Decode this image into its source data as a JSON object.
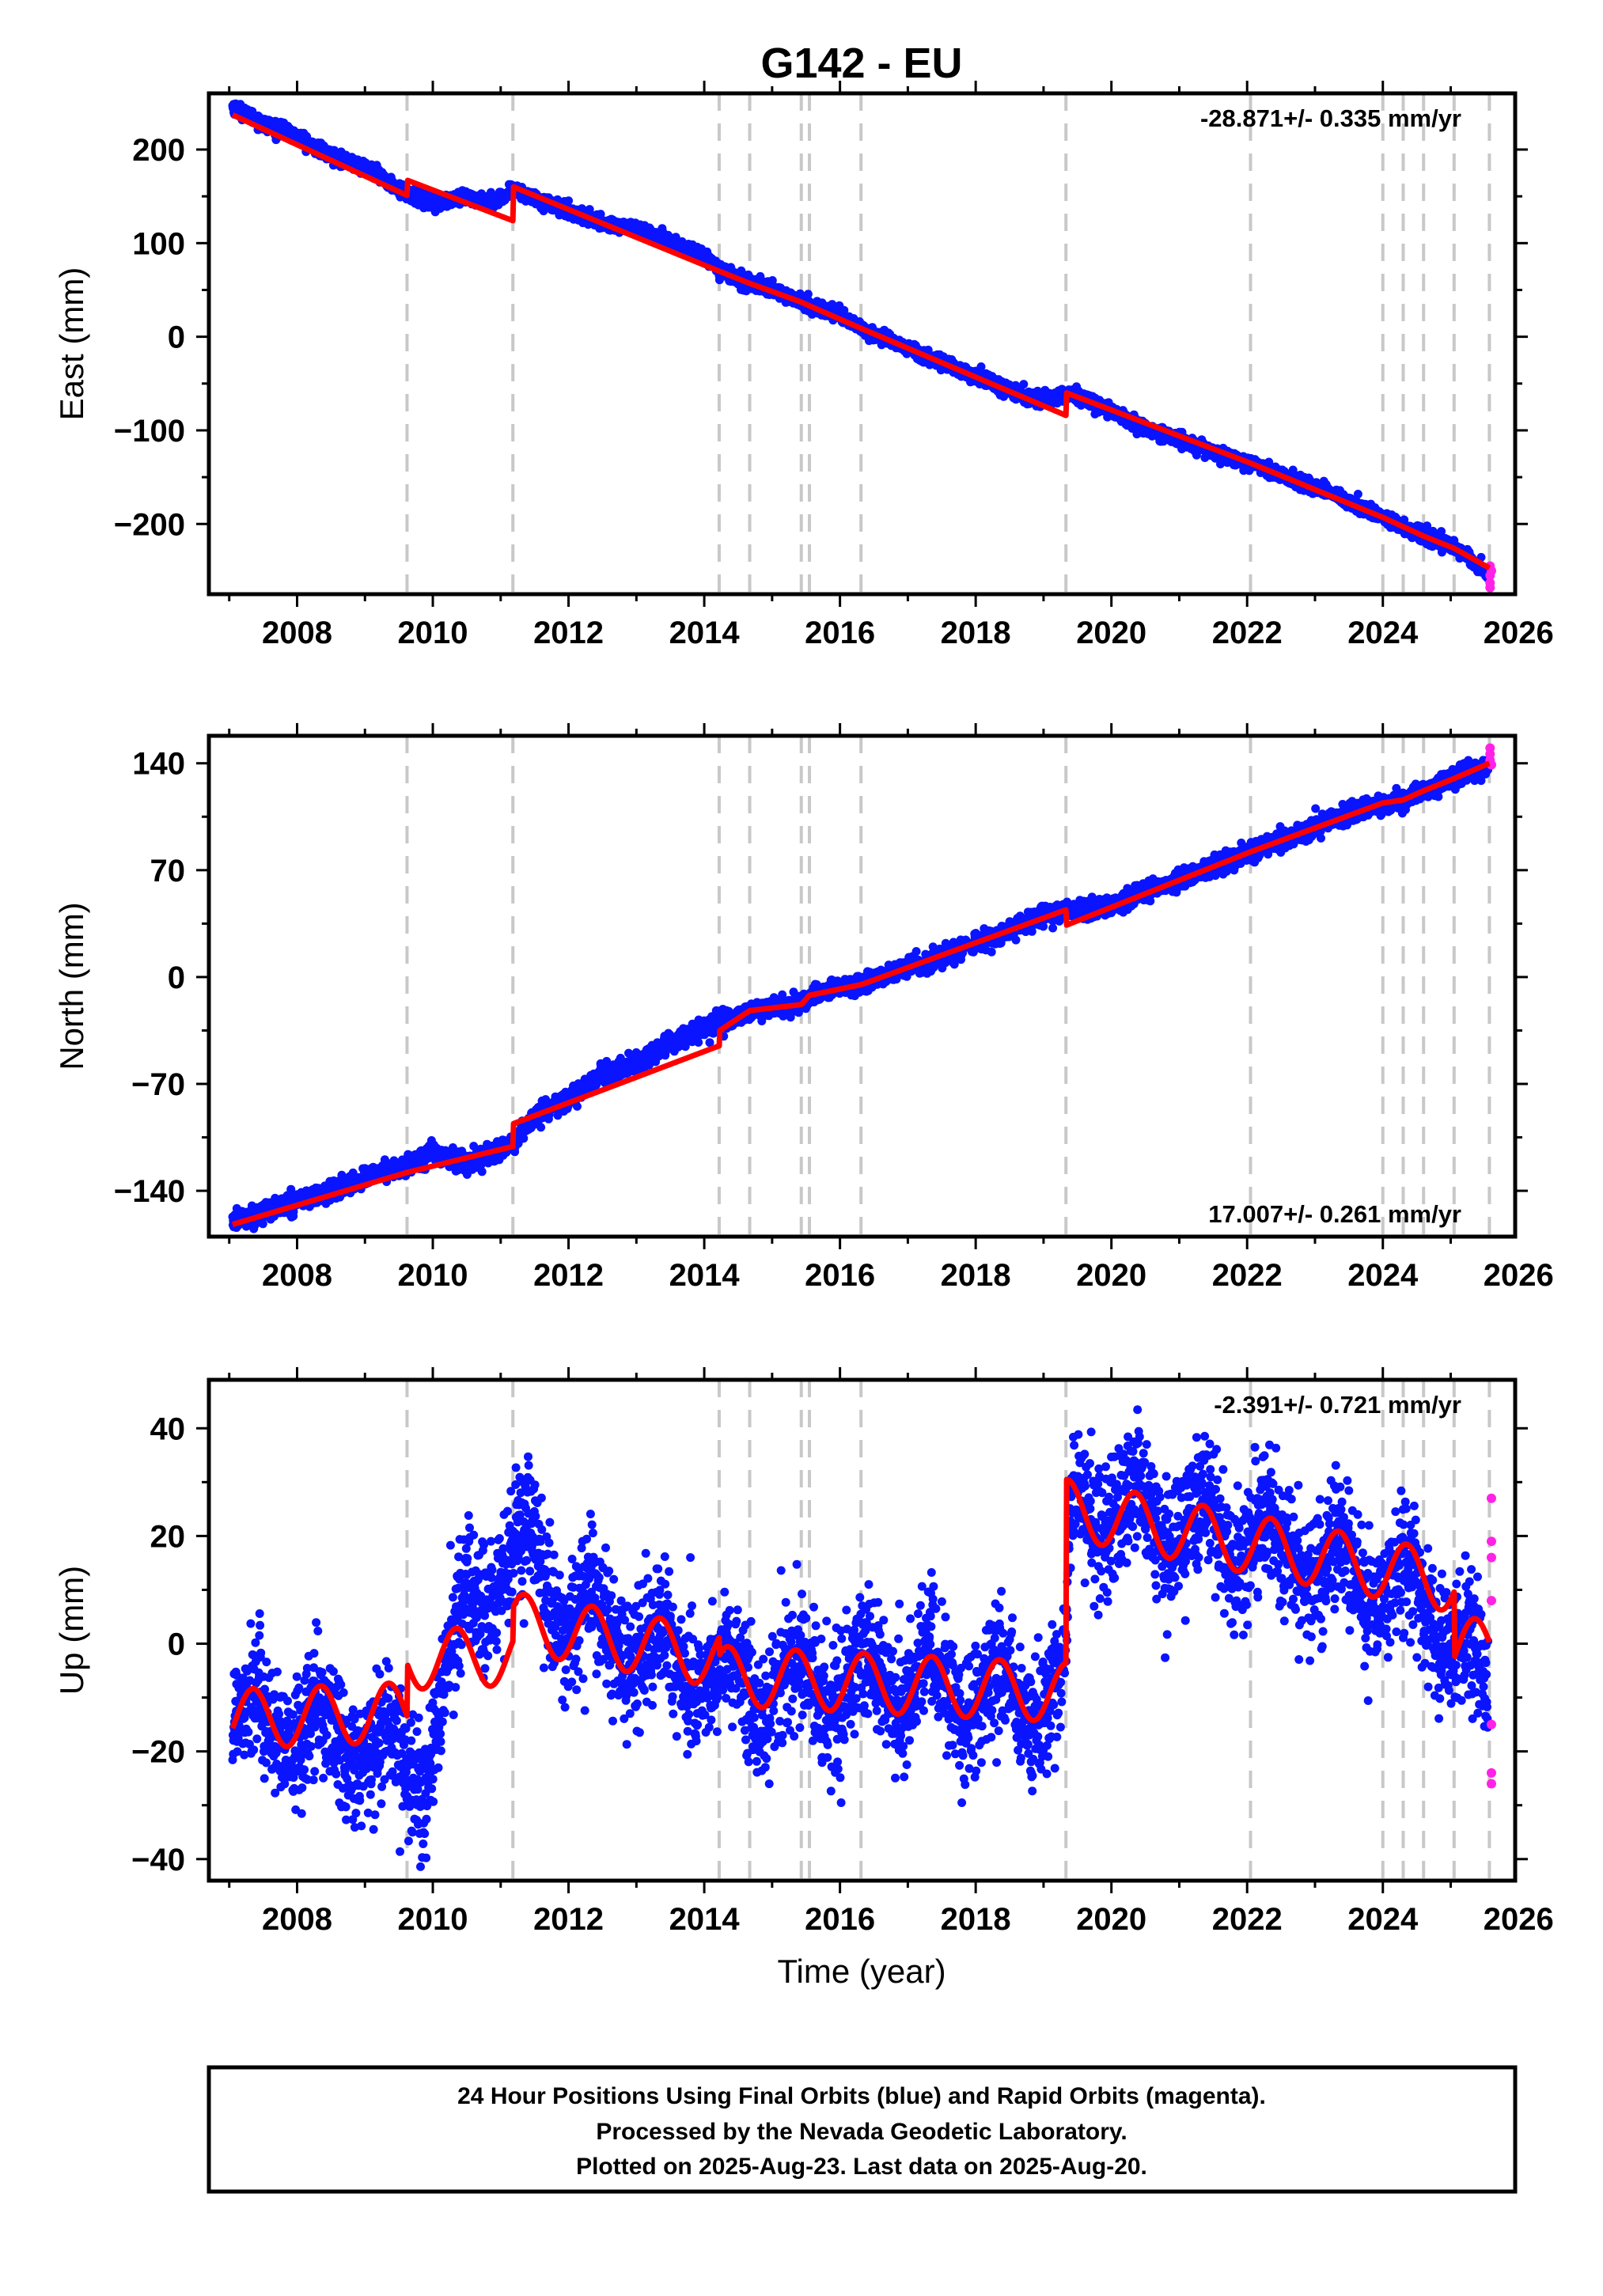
{
  "title": "G142 - EU",
  "colors": {
    "final_orbits": "#0a14ff",
    "rapid_orbits": "#ff22e6",
    "model": "#ff0000",
    "event_lines": "#c8c8c8",
    "frame": "#000000"
  },
  "x_axis": {
    "label": "Time (year)",
    "range": [
      2006.7,
      2025.95
    ],
    "ticks": [
      2008,
      2010,
      2012,
      2014,
      2016,
      2018,
      2020,
      2022,
      2024,
      2026
    ],
    "tick_labels": [
      "2008",
      "2010",
      "2012",
      "2014",
      "2016",
      "2018",
      "2020",
      "2022",
      "2024",
      "2026"
    ]
  },
  "event_lines": [
    2009.62,
    2011.18,
    2014.22,
    2014.67,
    2015.43,
    2015.55,
    2016.31,
    2019.33,
    2022.05,
    2024.0,
    2024.3,
    2024.6,
    2025.05,
    2025.57
  ],
  "footer": {
    "line1": "24 Hour Positions Using Final Orbits (blue) and Rapid Orbits (magenta).",
    "line2": "Processed by the Nevada Geodetic Laboratory.",
    "line3": "Plotted on 2025-Aug-23. Last data on 2025-Aug-20."
  },
  "chart_data": [
    {
      "type": "scatter",
      "name": "east",
      "ylabel": "East (mm)",
      "ylim": [
        -275,
        260
      ],
      "yticks": [
        200,
        100,
        0,
        -100,
        -200
      ],
      "ytick_labels": [
        "200",
        "100",
        "0",
        "−100",
        "−200"
      ],
      "rate_label": "-28.871+/- 0.335 mm/yr",
      "rate_position": "top-right",
      "x_range": [
        2007.05,
        2025.55
      ],
      "rapid_points": [
        [
          2025.58,
          -245
        ],
        [
          2025.58,
          -255
        ],
        [
          2025.58,
          -263
        ],
        [
          2025.58,
          -268
        ],
        [
          2025.6,
          -250
        ]
      ],
      "model_line": [
        [
          2007.05,
          237
        ],
        [
          2009.62,
          151
        ],
        [
          2009.63,
          167
        ],
        [
          2011.18,
          124
        ],
        [
          2011.19,
          160
        ],
        [
          2014.22,
          70
        ],
        [
          2014.67,
          57
        ],
        [
          2015.43,
          37
        ],
        [
          2015.55,
          33
        ],
        [
          2016.31,
          9
        ],
        [
          2019.33,
          -84
        ],
        [
          2019.34,
          -60
        ],
        [
          2022.05,
          -135
        ],
        [
          2024.0,
          -193
        ],
        [
          2024.3,
          -203
        ],
        [
          2024.6,
          -213
        ],
        [
          2025.05,
          -226
        ],
        [
          2025.57,
          -247
        ]
      ],
      "observed_path": [
        [
          2007.05,
          246
        ],
        [
          2007.5,
          228
        ],
        [
          2008.0,
          214
        ],
        [
          2008.5,
          193
        ],
        [
          2009.0,
          181
        ],
        [
          2009.62,
          152
        ],
        [
          2010.0,
          143
        ],
        [
          2010.5,
          148
        ],
        [
          2011.0,
          145
        ],
        [
          2011.18,
          158
        ],
        [
          2011.5,
          148
        ],
        [
          2012.0,
          135
        ],
        [
          2012.5,
          121
        ],
        [
          2013.0,
          116
        ],
        [
          2013.5,
          101
        ],
        [
          2014.0,
          87
        ],
        [
          2014.22,
          72
        ],
        [
          2014.67,
          57
        ],
        [
          2015.0,
          51
        ],
        [
          2015.43,
          37
        ],
        [
          2015.55,
          33
        ],
        [
          2016.0,
          24
        ],
        [
          2016.31,
          9
        ],
        [
          2017.0,
          -12
        ],
        [
          2017.5,
          -28
        ],
        [
          2018.0,
          -42
        ],
        [
          2018.5,
          -58
        ],
        [
          2019.0,
          -68
        ],
        [
          2019.33,
          -62
        ],
        [
          2019.5,
          -62
        ],
        [
          2020.0,
          -80
        ],
        [
          2020.5,
          -98
        ],
        [
          2021.0,
          -110
        ],
        [
          2021.5,
          -123
        ],
        [
          2022.05,
          -135
        ],
        [
          2022.5,
          -148
        ],
        [
          2023.0,
          -160
        ],
        [
          2023.5,
          -177
        ],
        [
          2024.0,
          -193
        ],
        [
          2024.5,
          -210
        ],
        [
          2025.0,
          -223
        ],
        [
          2025.55,
          -252
        ]
      ],
      "noise_sd": 3.5
    },
    {
      "type": "scatter",
      "name": "north",
      "ylabel": "North (mm)",
      "ylim": [
        -170,
        158
      ],
      "yticks": [
        140,
        70,
        0,
        -70,
        -140
      ],
      "ytick_labels": [
        "140",
        "70",
        "0",
        "−70",
        "−140"
      ],
      "rate_label": "17.007+/- 0.261 mm/yr",
      "rate_position": "bottom-right",
      "x_range": [
        2007.05,
        2025.55
      ],
      "rapid_points": [
        [
          2025.58,
          150
        ],
        [
          2025.58,
          146
        ],
        [
          2025.58,
          142
        ],
        [
          2025.6,
          139
        ]
      ],
      "model_line": [
        [
          2007.05,
          -162
        ],
        [
          2009.62,
          -128
        ],
        [
          2011.18,
          -111
        ],
        [
          2011.19,
          -96
        ],
        [
          2014.22,
          -45
        ],
        [
          2014.23,
          -35
        ],
        [
          2014.67,
          -22
        ],
        [
          2015.43,
          -18
        ],
        [
          2015.55,
          -12
        ],
        [
          2016.31,
          -5
        ],
        [
          2019.33,
          44
        ],
        [
          2019.34,
          34
        ],
        [
          2022.05,
          82
        ],
        [
          2024.0,
          114
        ],
        [
          2024.3,
          116
        ],
        [
          2024.6,
          122
        ],
        [
          2025.05,
          130
        ],
        [
          2025.57,
          140
        ]
      ],
      "observed_path": [
        [
          2007.05,
          -160
        ],
        [
          2007.5,
          -154
        ],
        [
          2008.0,
          -146
        ],
        [
          2008.5,
          -141
        ],
        [
          2009.0,
          -131
        ],
        [
          2009.62,
          -124
        ],
        [
          2010.0,
          -114
        ],
        [
          2010.2,
          -118
        ],
        [
          2010.5,
          -122
        ],
        [
          2011.0,
          -113
        ],
        [
          2011.18,
          -110
        ],
        [
          2011.5,
          -91
        ],
        [
          2012.0,
          -80
        ],
        [
          2012.5,
          -64
        ],
        [
          2013.0,
          -57
        ],
        [
          2013.5,
          -43
        ],
        [
          2014.0,
          -33
        ],
        [
          2014.22,
          -30
        ],
        [
          2014.67,
          -23
        ],
        [
          2015.43,
          -17
        ],
        [
          2015.55,
          -13
        ],
        [
          2016.0,
          -6
        ],
        [
          2016.31,
          -5
        ],
        [
          2017.0,
          7
        ],
        [
          2017.5,
          13
        ],
        [
          2018.0,
          22
        ],
        [
          2018.5,
          30
        ],
        [
          2019.0,
          41
        ],
        [
          2019.33,
          42
        ],
        [
          2020.0,
          47
        ],
        [
          2020.5,
          56
        ],
        [
          2021.0,
          63
        ],
        [
          2021.5,
          72
        ],
        [
          2022.05,
          82
        ],
        [
          2022.5,
          90
        ],
        [
          2023.0,
          98
        ],
        [
          2023.5,
          108
        ],
        [
          2024.0,
          113
        ],
        [
          2024.3,
          116
        ],
        [
          2024.6,
          122
        ],
        [
          2025.05,
          130
        ],
        [
          2025.55,
          138
        ]
      ],
      "noise_sd": 3.0
    },
    {
      "type": "scatter",
      "name": "up",
      "ylabel": "Up (mm)",
      "ylim": [
        -44,
        49
      ],
      "yticks": [
        40,
        20,
        0,
        -20,
        -40
      ],
      "ytick_labels": [
        "40",
        "20",
        "0",
        "−20",
        "−40"
      ],
      "rate_label": "-2.391+/- 0.721 mm/yr",
      "rate_position": "top-right",
      "x_range": [
        2007.05,
        2025.55
      ],
      "rapid_points": [
        [
          2025.6,
          27
        ],
        [
          2025.6,
          19
        ],
        [
          2025.6,
          16
        ],
        [
          2025.6,
          8
        ],
        [
          2025.6,
          -15
        ],
        [
          2025.6,
          -24
        ],
        [
          2025.6,
          -26
        ]
      ],
      "model_segments": [
        {
          "x0": 2007.05,
          "x1": 2009.62,
          "base": -14,
          "trend": 0.5
        },
        {
          "x0": 2009.63,
          "x1": 2011.18,
          "base": -3,
          "trend": 0.5
        },
        {
          "x0": 2011.19,
          "x1": 2014.22,
          "base": 4,
          "trend": -2.2
        },
        {
          "x0": 2014.23,
          "x1": 2019.33,
          "base": -6,
          "trend": -0.6
        },
        {
          "x0": 2019.34,
          "x1": 2025.05,
          "base": 25,
          "trend": -2.4
        },
        {
          "x0": 2025.06,
          "x1": 2025.57,
          "base": -1,
          "trend": 0.5
        }
      ],
      "seasonal_amplitude": 5.5,
      "observed_path": [
        [
          2007.05,
          -13
        ],
        [
          2008.0,
          -16
        ],
        [
          2009.0,
          -19
        ],
        [
          2009.62,
          -22
        ],
        [
          2009.9,
          -22
        ],
        [
          2010.3,
          -4
        ],
        [
          2010.5,
          8
        ],
        [
          2011.0,
          14
        ],
        [
          2011.5,
          16
        ],
        [
          2012.0,
          5
        ],
        [
          2012.5,
          3
        ],
        [
          2013.0,
          -1
        ],
        [
          2014.0,
          -4
        ],
        [
          2014.22,
          -8
        ],
        [
          2015.0,
          -7
        ],
        [
          2016.0,
          -8
        ],
        [
          2017.0,
          -6
        ],
        [
          2018.0,
          -9
        ],
        [
          2019.0,
          -10
        ],
        [
          2019.33,
          -8
        ],
        [
          2019.4,
          26
        ],
        [
          2020.0,
          25
        ],
        [
          2021.0,
          22
        ],
        [
          2022.0,
          20
        ],
        [
          2023.0,
          16
        ],
        [
          2024.0,
          11
        ],
        [
          2024.6,
          9
        ],
        [
          2025.05,
          1
        ],
        [
          2025.55,
          -9
        ]
      ],
      "noise_sd": 6.0
    }
  ]
}
